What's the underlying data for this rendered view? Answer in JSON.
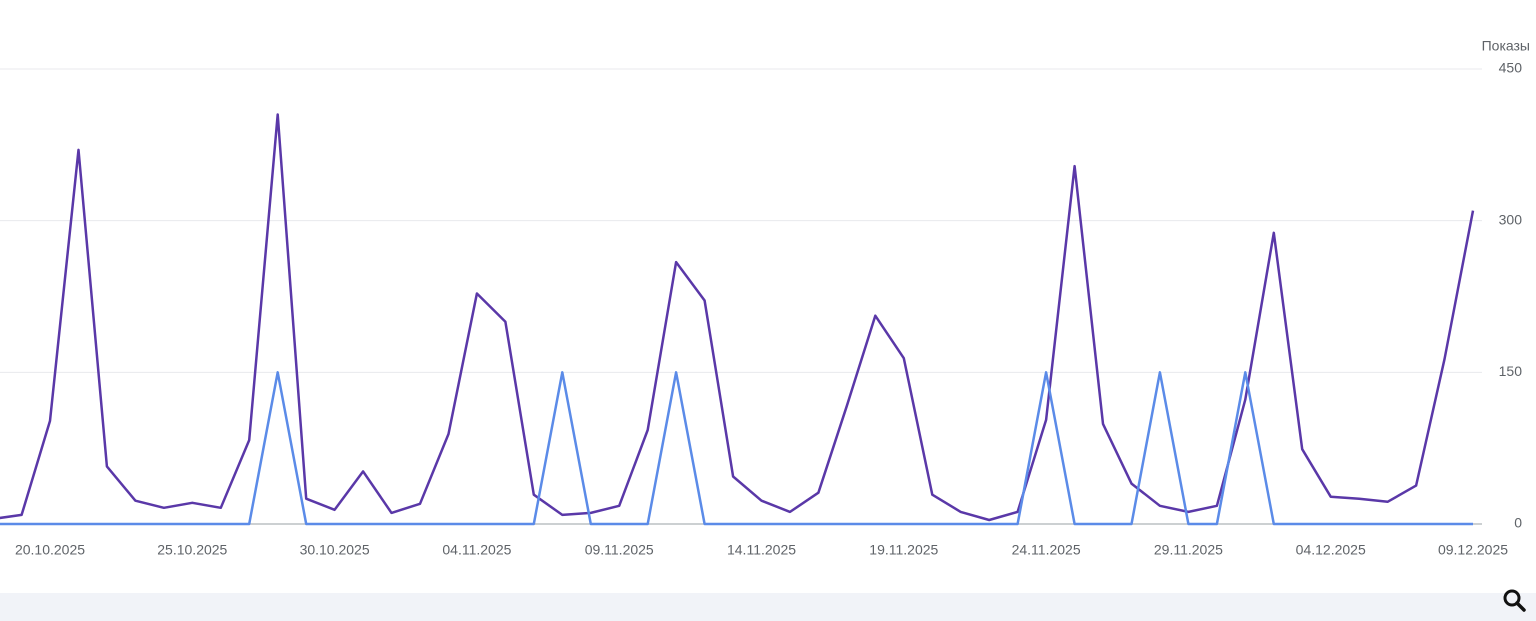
{
  "chart_data": {
    "type": "line",
    "y_axis_label": "Показы",
    "categories": [
      null,
      null,
      "20.10.2025",
      null,
      null,
      null,
      null,
      "25.10.2025",
      null,
      null,
      null,
      null,
      "30.10.2025",
      null,
      null,
      null,
      null,
      "04.11.2025",
      null,
      null,
      null,
      null,
      "09.11.2025",
      null,
      null,
      null,
      null,
      "14.11.2025",
      null,
      null,
      null,
      null,
      "19.11.2025",
      null,
      null,
      null,
      null,
      "24.11.2025",
      null,
      null,
      null,
      null,
      "29.11.2025",
      null,
      null,
      null,
      null,
      "04.12.2025",
      null,
      null,
      null,
      null,
      "09.12.2025"
    ],
    "series": [
      {
        "color": "#5a38a8",
        "values": [
          5,
          9,
          102,
          370,
          57,
          23,
          16,
          21,
          16,
          83,
          405,
          25,
          14,
          52,
          11,
          20,
          89,
          228,
          200,
          29,
          9,
          11,
          18,
          93,
          259,
          221,
          47,
          23,
          12,
          31,
          117,
          206,
          164,
          29,
          12,
          4,
          12,
          103,
          354,
          99,
          40,
          18,
          12,
          18,
          123,
          288,
          74,
          27,
          25,
          22,
          38,
          163,
          310
        ]
      },
      {
        "color": "#5b8be8",
        "values": [
          0,
          0,
          0,
          0,
          0,
          0,
          0,
          0,
          0,
          0,
          150,
          0,
          0,
          0,
          0,
          0,
          0,
          0,
          0,
          0,
          150,
          0,
          0,
          0,
          150,
          0,
          0,
          0,
          0,
          0,
          0,
          0,
          0,
          0,
          0,
          0,
          0,
          150,
          0,
          0,
          0,
          150,
          0,
          0,
          150,
          0,
          0,
          0,
          0,
          0,
          0,
          0,
          0
        ]
      }
    ],
    "ylim": [
      0,
      450
    ],
    "yticks": [
      0,
      150,
      300,
      450
    ],
    "grid": true,
    "y_axis_side": "right"
  }
}
